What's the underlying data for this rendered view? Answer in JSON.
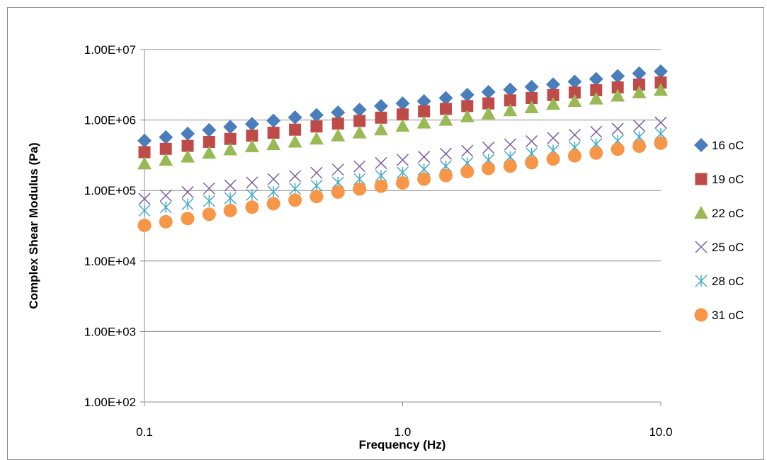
{
  "chart_data": {
    "type": "scatter",
    "title": "",
    "xlabel": "Frequency (Hz)",
    "ylabel": "Complex Shear Modulus (Pa)",
    "x_scale": "log",
    "y_scale": "log",
    "xlim": [
      0.1,
      10.0
    ],
    "ylim": [
      100,
      10000000
    ],
    "x_ticks": [
      0.1,
      1.0,
      10.0
    ],
    "x_tick_labels": [
      "0.1",
      "1.0",
      "10.0"
    ],
    "y_ticks": [
      100,
      1000,
      10000,
      100000,
      1000000,
      10000000
    ],
    "y_tick_labels": [
      "1.00E+02",
      "1.00E+03",
      "1.00E+04",
      "1.00E+05",
      "1.00E+06",
      "1.00E+07"
    ],
    "grid": "horizontal major",
    "legend_position": "right",
    "x": [
      0.1,
      0.121,
      0.147,
      0.178,
      0.215,
      0.261,
      0.316,
      0.383,
      0.464,
      0.562,
      0.681,
      0.825,
      1.0,
      1.21,
      1.47,
      1.78,
      2.15,
      2.61,
      3.16,
      3.83,
      4.64,
      5.62,
      6.81,
      8.25,
      10.0
    ],
    "series": [
      {
        "name": "16 oC",
        "marker": "diamond",
        "color": "#4a7ebb",
        "values": [
          510000,
          570000,
          640000,
          720000,
          800000,
          880000,
          980000,
          1090000,
          1180000,
          1280000,
          1400000,
          1580000,
          1720000,
          1850000,
          2050000,
          2280000,
          2500000,
          2700000,
          2950000,
          3200000,
          3500000,
          3820000,
          4200000,
          4600000,
          4900000
        ]
      },
      {
        "name": "19 oC",
        "marker": "square",
        "color": "#be4b48",
        "values": [
          350000,
          390000,
          430000,
          490000,
          540000,
          600000,
          660000,
          730000,
          810000,
          890000,
          970000,
          1080000,
          1200000,
          1330000,
          1440000,
          1580000,
          1720000,
          1900000,
          2050000,
          2260000,
          2450000,
          2650000,
          2900000,
          3180000,
          3400000
        ]
      },
      {
        "name": "22 oC",
        "marker": "triangle",
        "color": "#98b954",
        "values": [
          240000,
          270000,
          300000,
          340000,
          380000,
          420000,
          450000,
          490000,
          540000,
          600000,
          660000,
          730000,
          820000,
          910000,
          1000000,
          1120000,
          1230000,
          1360000,
          1500000,
          1680000,
          1850000,
          2000000,
          2200000,
          2450000,
          2650000
        ]
      },
      {
        "name": "25 oC",
        "marker": "x",
        "color": "#7d60a0",
        "values": [
          76000,
          85000,
          95000,
          107000,
          118000,
          130000,
          145000,
          160000,
          178000,
          198000,
          220000,
          245000,
          272000,
          300000,
          332000,
          365000,
          405000,
          450000,
          500000,
          555000,
          615000,
          680000,
          750000,
          830000,
          920000
        ]
      },
      {
        "name": "28 oC",
        "marker": "asterisk",
        "color": "#46aac5",
        "values": [
          52000,
          58000,
          64000,
          71000,
          78000,
          87000,
          96000,
          106000,
          117000,
          130000,
          145000,
          162000,
          180000,
          200000,
          222000,
          245000,
          272000,
          300000,
          335000,
          370000,
          410000,
          455000,
          510000,
          575000,
          640000
        ]
      },
      {
        "name": "31 oC",
        "marker": "circle",
        "color": "#f79646",
        "values": [
          32000,
          36000,
          40000,
          46000,
          52000,
          58000,
          65000,
          73000,
          82000,
          95000,
          105000,
          115000,
          128000,
          145000,
          163000,
          185000,
          205000,
          222000,
          248000,
          280000,
          310000,
          340000,
          385000,
          425000,
          470000
        ]
      }
    ]
  }
}
